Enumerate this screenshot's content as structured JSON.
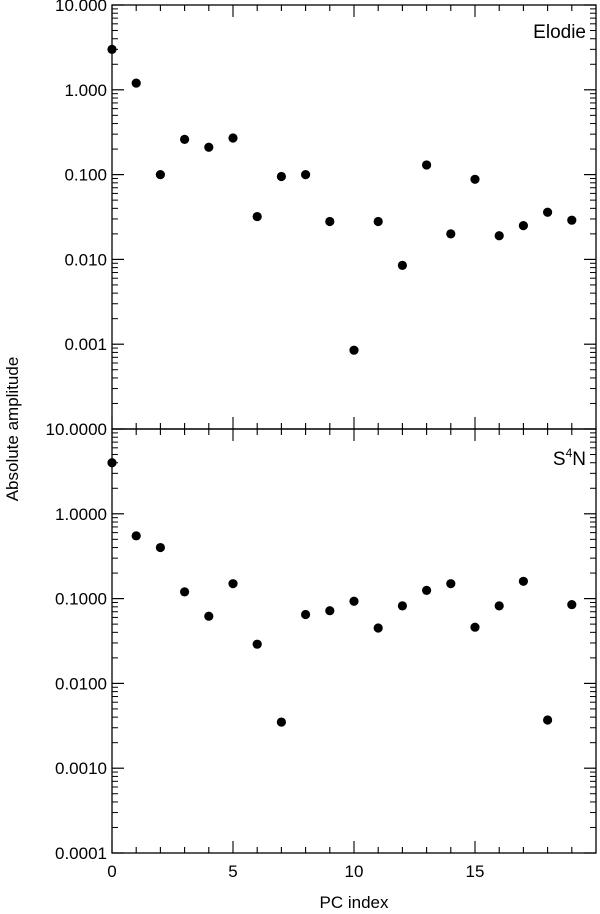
{
  "chart_data": [
    {
      "type": "scatter",
      "panel_label": "Elodie",
      "y_scale": "log",
      "ylim": [
        0.0001,
        10
      ],
      "y_ticks": [
        {
          "value": 10,
          "label": "10.000"
        },
        {
          "value": 1,
          "label": "1.000"
        },
        {
          "value": 0.1,
          "label": "0.100"
        },
        {
          "value": 0.01,
          "label": "0.010"
        },
        {
          "value": 0.001,
          "label": "0.001"
        }
      ],
      "xlim": [
        0,
        20
      ],
      "x": [
        0,
        1,
        2,
        3,
        4,
        5,
        6,
        7,
        8,
        9,
        10,
        11,
        12,
        13,
        14,
        15,
        16,
        17,
        18,
        19
      ],
      "values": [
        3.0,
        1.2,
        0.1,
        0.26,
        0.21,
        0.27,
        0.032,
        0.095,
        0.1,
        0.028,
        0.00085,
        0.028,
        0.0085,
        0.13,
        0.02,
        0.088,
        0.019,
        0.025,
        0.036,
        0.029
      ]
    },
    {
      "type": "scatter",
      "panel_label_main": "S",
      "panel_label_sup": "4",
      "panel_label_end": "N",
      "y_scale": "log",
      "ylim": [
        0.0001,
        10
      ],
      "y_ticks": [
        {
          "value": 10,
          "label": "10.0000"
        },
        {
          "value": 1,
          "label": "1.0000"
        },
        {
          "value": 0.1,
          "label": "0.1000"
        },
        {
          "value": 0.01,
          "label": "0.0100"
        },
        {
          "value": 0.001,
          "label": "0.0010"
        },
        {
          "value": 0.0001,
          "label": "0.0001"
        }
      ],
      "xlim": [
        0,
        20
      ],
      "x": [
        0,
        1,
        2,
        3,
        4,
        5,
        6,
        7,
        8,
        9,
        10,
        11,
        12,
        13,
        14,
        15,
        16,
        17,
        18,
        19
      ],
      "values": [
        4.0,
        0.55,
        0.4,
        0.12,
        0.062,
        0.15,
        0.029,
        0.0035,
        0.065,
        0.072,
        0.093,
        0.045,
        0.082,
        0.125,
        0.15,
        0.046,
        0.082,
        0.16,
        0.0037,
        0.085
      ]
    }
  ],
  "shared": {
    "ylabel": "Absolute amplitude",
    "xlabel": "PC index",
    "x_ticks": [
      {
        "value": 0,
        "label": "0"
      },
      {
        "value": 5,
        "label": "5"
      },
      {
        "value": 10,
        "label": "10"
      },
      {
        "value": 15,
        "label": "15"
      }
    ]
  },
  "colors": {
    "axis": "#000000",
    "marker": "#000000",
    "background": "#ffffff"
  }
}
